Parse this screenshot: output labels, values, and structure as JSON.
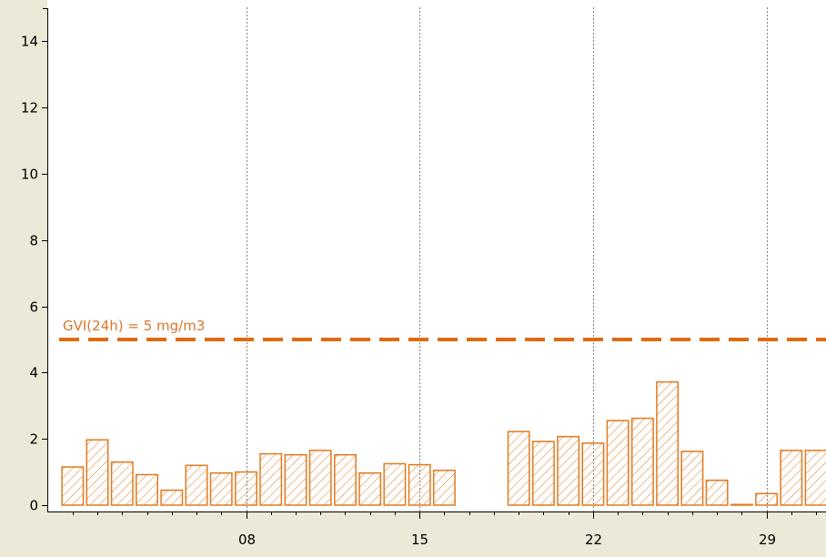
{
  "chart_data": {
    "type": "bar",
    "title": "",
    "xlabel": "",
    "ylabel": "",
    "x": [
      1,
      2,
      3,
      4,
      5,
      6,
      7,
      8,
      9,
      10,
      11,
      12,
      13,
      14,
      15,
      16,
      17,
      18,
      19,
      20,
      21,
      22,
      23,
      24,
      25,
      26,
      27,
      28,
      29,
      30,
      31
    ],
    "values": [
      1.15,
      1.97,
      1.3,
      0.92,
      0.45,
      1.2,
      0.97,
      1.0,
      1.55,
      1.52,
      1.65,
      1.52,
      0.97,
      1.25,
      1.22,
      1.05,
      null,
      null,
      2.22,
      1.92,
      2.07,
      1.87,
      2.55,
      2.62,
      3.72,
      1.62,
      0.75,
      0.02,
      0.35,
      1.65,
      1.65
    ],
    "x_ticks": [
      {
        "value": 8,
        "label": "08"
      },
      {
        "value": 15,
        "label": "15"
      },
      {
        "value": 22,
        "label": "22"
      },
      {
        "value": 29,
        "label": "29"
      }
    ],
    "y_ticks": [
      0,
      2,
      4,
      6,
      8,
      10,
      12,
      14
    ],
    "ylim": [
      0,
      15
    ],
    "xlim": [
      0.2,
      31.4
    ],
    "grid": "vertical-dotted",
    "threshold": {
      "value": 5,
      "label": "GVI(24h) = 5 mg/m3"
    },
    "bar_fill": "hatched",
    "colors": {
      "bars": "#e07a1f",
      "threshold": "#e06a10",
      "threshold_label": "#d9762b",
      "plot_background": "#ffffff",
      "frame_background": "#ece9d8",
      "axis": "#000000",
      "grid": "#808080"
    }
  }
}
